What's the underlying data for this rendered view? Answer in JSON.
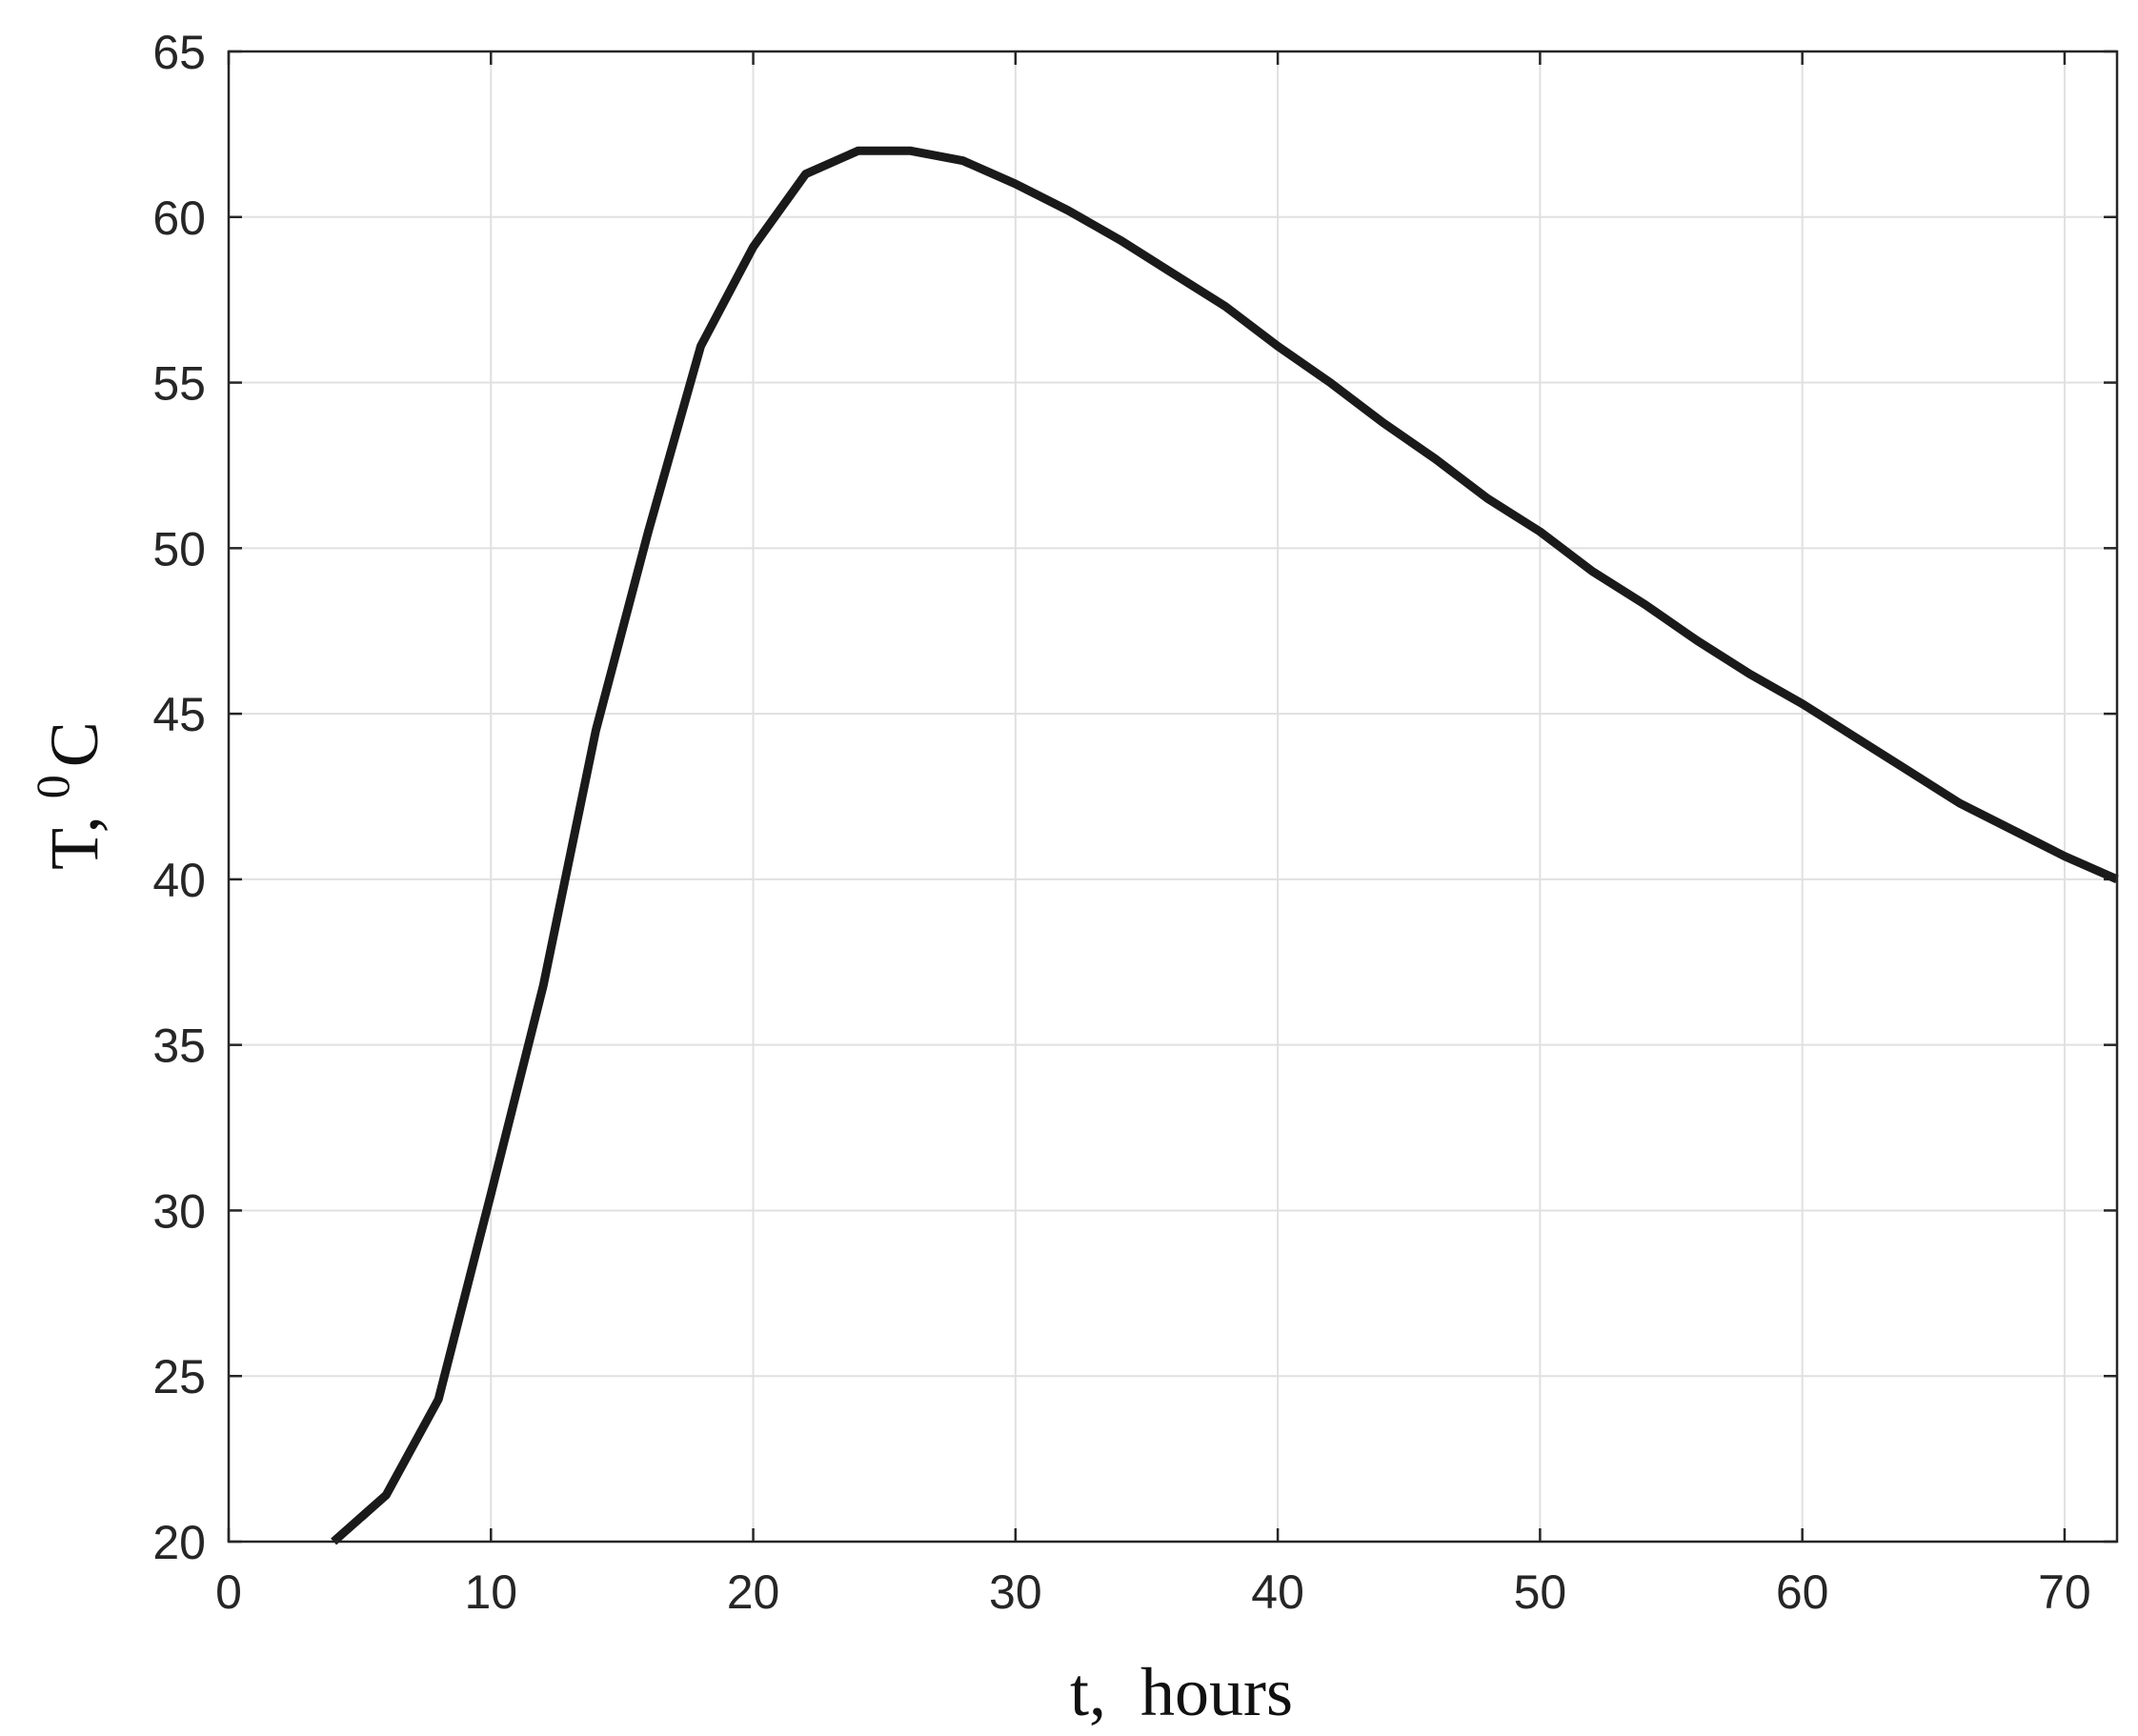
{
  "chart_data": {
    "type": "line",
    "title": "",
    "xlabel": "t,  hours",
    "ylabel": {
      "base": "T, ",
      "superscript": "0",
      "unit": "C"
    },
    "xlim": [
      0,
      72
    ],
    "ylim": [
      20,
      65
    ],
    "xticks": [
      0,
      10,
      20,
      30,
      40,
      50,
      60,
      70
    ],
    "yticks": [
      20,
      25,
      30,
      35,
      40,
      45,
      50,
      55,
      60,
      65
    ],
    "grid": true,
    "line_color": "#1a1a1a",
    "grid_color": "#e0e0e0",
    "series": [
      {
        "x": [
          4,
          6,
          8,
          10,
          12,
          14,
          16,
          18,
          20,
          22,
          24,
          26,
          28,
          30,
          32,
          34,
          36,
          38,
          40,
          42,
          44,
          46,
          48,
          50,
          52,
          54,
          56,
          58,
          60,
          62,
          64,
          66,
          68,
          70,
          72
        ],
        "y": [
          20.0,
          21.4,
          24.3,
          30.5,
          36.8,
          44.5,
          50.5,
          56.1,
          59.1,
          61.3,
          62.0,
          62.0,
          61.7,
          61.0,
          60.2,
          59.3,
          58.3,
          57.3,
          56.1,
          55.0,
          53.8,
          52.7,
          51.5,
          50.5,
          49.3,
          48.3,
          47.2,
          46.2,
          45.3,
          44.3,
          43.3,
          42.3,
          41.5,
          40.7,
          40.0
        ]
      }
    ]
  }
}
